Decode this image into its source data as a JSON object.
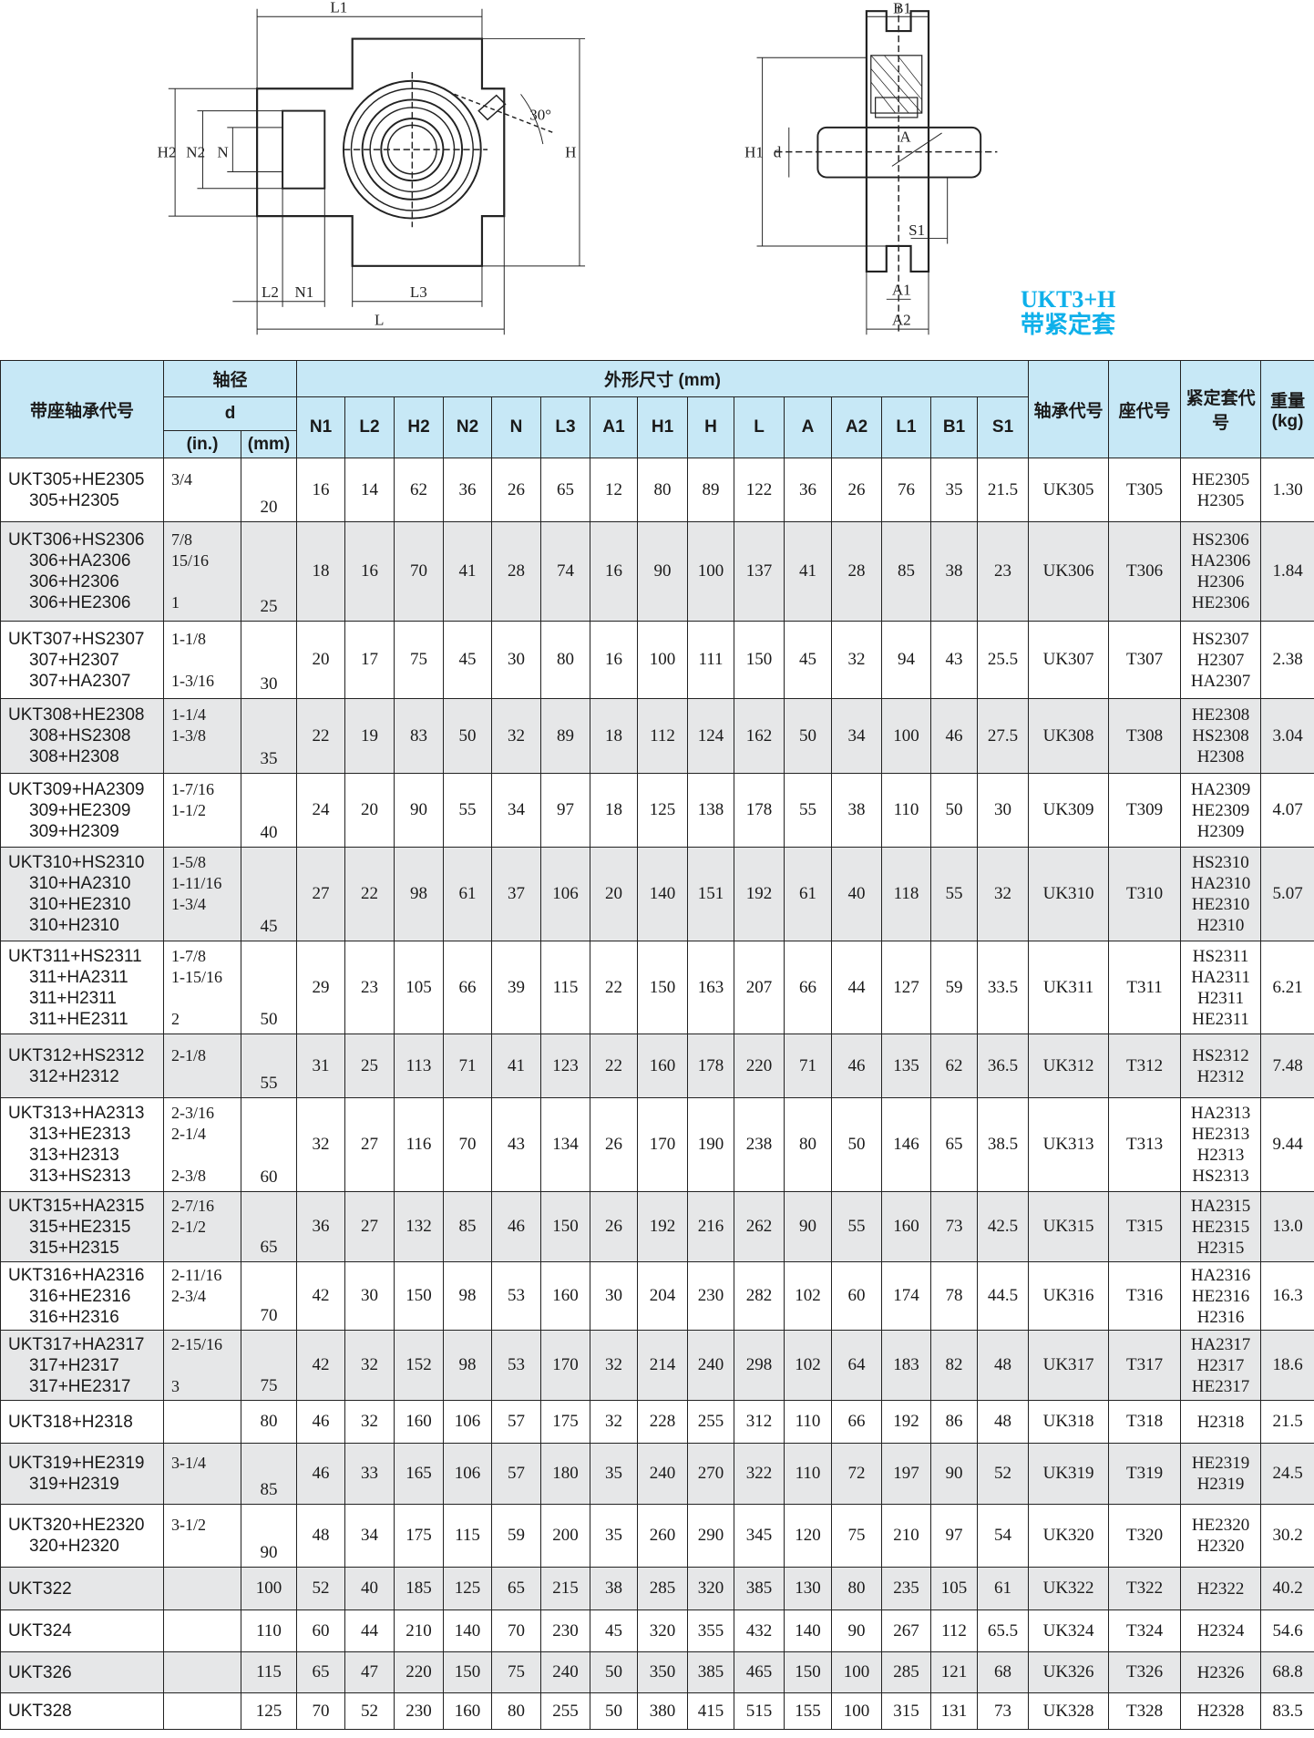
{
  "drawing": {
    "labels": {
      "L1": "L1",
      "H2": "H2",
      "N2": "N2",
      "N": "N",
      "angle": "30°",
      "H": "H",
      "L2": "L2",
      "N1": "N1",
      "L3": "L3",
      "L": "L",
      "B1": "B1",
      "H1": "H1",
      "d": "d",
      "A": "A",
      "S1": "S1",
      "A1": "A1",
      "A2": "A2"
    },
    "colors": {
      "line": "#222222",
      "title": "#0eb0ea",
      "header_bg": "#c7e8f6",
      "alt_row": "#e6e7e8"
    }
  },
  "model": {
    "code": "UKT3+H",
    "name": "带紧定套"
  },
  "table": {
    "headers": {
      "unit_code": "带座轴承代号",
      "shaft": "轴径",
      "d": "d",
      "inch": "(in.)",
      "mm": "(mm)",
      "dims": "外形尺寸 (mm)",
      "bearing": "轴承代号",
      "housing": "座代号",
      "sleeve": "紧定套代号",
      "weight": "重量(kg)",
      "dim_cols": [
        "N1",
        "L2",
        "H2",
        "N2",
        "N",
        "L3",
        "A1",
        "H1",
        "H",
        "L",
        "A",
        "A2",
        "L1",
        "B1",
        "S1"
      ]
    },
    "rows": [
      {
        "codes": [
          "UKT305+HE2305",
          "305+H2305"
        ],
        "inch": [
          "3/4",
          ""
        ],
        "mm": "20",
        "dims": [
          "16",
          "14",
          "62",
          "36",
          "26",
          "65",
          "12",
          "80",
          "89",
          "122",
          "36",
          "26",
          "76",
          "35",
          "21.5"
        ],
        "bearing": "UK305",
        "housing": "T305",
        "sleeve": [
          "HE2305",
          "H2305"
        ],
        "weight": "1.30"
      },
      {
        "codes": [
          "UKT306+HS2306",
          "306+HA2306",
          "306+H2306",
          "306+HE2306"
        ],
        "inch": [
          "7/8",
          "15/16",
          "",
          "1"
        ],
        "mm": "25",
        "dims": [
          "18",
          "16",
          "70",
          "41",
          "28",
          "74",
          "16",
          "90",
          "100",
          "137",
          "41",
          "28",
          "85",
          "38",
          "23"
        ],
        "bearing": "UK306",
        "housing": "T306",
        "sleeve": [
          "HS2306",
          "HA2306",
          "H2306",
          "HE2306"
        ],
        "weight": "1.84"
      },
      {
        "codes": [
          "UKT307+HS2307",
          "307+H2307",
          "307+HA2307"
        ],
        "inch": [
          "1-1/8",
          "",
          "1-3/16"
        ],
        "mm": "30",
        "dims": [
          "20",
          "17",
          "75",
          "45",
          "30",
          "80",
          "16",
          "100",
          "111",
          "150",
          "45",
          "32",
          "94",
          "43",
          "25.5"
        ],
        "bearing": "UK307",
        "housing": "T307",
        "sleeve": [
          "HS2307",
          "H2307",
          "HA2307"
        ],
        "weight": "2.38"
      },
      {
        "codes": [
          "UKT308+HE2308",
          "308+HS2308",
          "308+H2308"
        ],
        "inch": [
          "1-1/4",
          "1-3/8",
          ""
        ],
        "mm": "35",
        "dims": [
          "22",
          "19",
          "83",
          "50",
          "32",
          "89",
          "18",
          "112",
          "124",
          "162",
          "50",
          "34",
          "100",
          "46",
          "27.5"
        ],
        "bearing": "UK308",
        "housing": "T308",
        "sleeve": [
          "HE2308",
          "HS2308",
          "H2308"
        ],
        "weight": "3.04"
      },
      {
        "codes": [
          "UKT309+HA2309",
          "309+HE2309",
          "309+H2309"
        ],
        "inch": [
          "1-7/16",
          "1-1/2",
          ""
        ],
        "mm": "40",
        "dims": [
          "24",
          "20",
          "90",
          "55",
          "34",
          "97",
          "18",
          "125",
          "138",
          "178",
          "55",
          "38",
          "110",
          "50",
          "30"
        ],
        "bearing": "UK309",
        "housing": "T309",
        "sleeve": [
          "HA2309",
          "HE2309",
          "H2309"
        ],
        "weight": "4.07"
      },
      {
        "codes": [
          "UKT310+HS2310",
          "310+HA2310",
          "310+HE2310",
          "310+H2310"
        ],
        "inch": [
          "1-5/8",
          "1-11/16",
          "1-3/4",
          ""
        ],
        "mm": "45",
        "dims": [
          "27",
          "22",
          "98",
          "61",
          "37",
          "106",
          "20",
          "140",
          "151",
          "192",
          "61",
          "40",
          "118",
          "55",
          "32"
        ],
        "bearing": "UK310",
        "housing": "T310",
        "sleeve": [
          "HS2310",
          "HA2310",
          "HE2310",
          "H2310"
        ],
        "weight": "5.07"
      },
      {
        "codes": [
          "UKT311+HS2311",
          "311+HA2311",
          "311+H2311",
          "311+HE2311"
        ],
        "inch": [
          "1-7/8",
          "1-15/16",
          "",
          "2"
        ],
        "mm": "50",
        "dims": [
          "29",
          "23",
          "105",
          "66",
          "39",
          "115",
          "22",
          "150",
          "163",
          "207",
          "66",
          "44",
          "127",
          "59",
          "33.5"
        ],
        "bearing": "UK311",
        "housing": "T311",
        "sleeve": [
          "HS2311",
          "HA2311",
          "H2311",
          "HE2311"
        ],
        "weight": "6.21"
      },
      {
        "codes": [
          "UKT312+HS2312",
          "312+H2312"
        ],
        "inch": [
          "2-1/8",
          ""
        ],
        "mm": "55",
        "dims": [
          "31",
          "25",
          "113",
          "71",
          "41",
          "123",
          "22",
          "160",
          "178",
          "220",
          "71",
          "46",
          "135",
          "62",
          "36.5"
        ],
        "bearing": "UK312",
        "housing": "T312",
        "sleeve": [
          "HS2312",
          "H2312"
        ],
        "weight": "7.48"
      },
      {
        "codes": [
          "UKT313+HA2313",
          "313+HE2313",
          "313+H2313",
          "313+HS2313"
        ],
        "inch": [
          "2-3/16",
          "2-1/4",
          "",
          "2-3/8"
        ],
        "mm": "60",
        "dims": [
          "32",
          "27",
          "116",
          "70",
          "43",
          "134",
          "26",
          "170",
          "190",
          "238",
          "80",
          "50",
          "146",
          "65",
          "38.5"
        ],
        "bearing": "UK313",
        "housing": "T313",
        "sleeve": [
          "HA2313",
          "HE2313",
          "H2313",
          "HS2313"
        ],
        "weight": "9.44"
      },
      {
        "codes": [
          "UKT315+HA2315",
          "315+HE2315",
          "315+H2315"
        ],
        "inch": [
          "2-7/16",
          "2-1/2",
          ""
        ],
        "mm": "65",
        "dims": [
          "36",
          "27",
          "132",
          "85",
          "46",
          "150",
          "26",
          "192",
          "216",
          "262",
          "90",
          "55",
          "160",
          "73",
          "42.5"
        ],
        "bearing": "UK315",
        "housing": "T315",
        "sleeve": [
          "HA2315",
          "HE2315",
          "H2315"
        ],
        "weight": "13.0"
      },
      {
        "codes": [
          "UKT316+HA2316",
          "316+HE2316",
          "316+H2316"
        ],
        "inch": [
          "2-11/16",
          "2-3/4",
          ""
        ],
        "mm": "70",
        "dims": [
          "42",
          "30",
          "150",
          "98",
          "53",
          "160",
          "30",
          "204",
          "230",
          "282",
          "102",
          "60",
          "174",
          "78",
          "44.5"
        ],
        "bearing": "UK316",
        "housing": "T316",
        "sleeve": [
          "HA2316",
          "HE2316",
          "H2316"
        ],
        "weight": "16.3"
      },
      {
        "codes": [
          "UKT317+HA2317",
          "317+H2317",
          "317+HE2317"
        ],
        "inch": [
          "2-15/16",
          "",
          "3"
        ],
        "mm": "75",
        "dims": [
          "42",
          "32",
          "152",
          "98",
          "53",
          "170",
          "32",
          "214",
          "240",
          "298",
          "102",
          "64",
          "183",
          "82",
          "48"
        ],
        "bearing": "UK317",
        "housing": "T317",
        "sleeve": [
          "HA2317",
          "H2317",
          "HE2317"
        ],
        "weight": "18.6"
      },
      {
        "codes": [
          "UKT318+H2318"
        ],
        "inch": [
          ""
        ],
        "mm": "80",
        "dims": [
          "46",
          "32",
          "160",
          "106",
          "57",
          "175",
          "32",
          "228",
          "255",
          "312",
          "110",
          "66",
          "192",
          "86",
          "48"
        ],
        "bearing": "UK318",
        "housing": "T318",
        "sleeve": [
          "H2318"
        ],
        "weight": "21.5"
      },
      {
        "codes": [
          "UKT319+HE2319",
          "319+H2319"
        ],
        "inch": [
          "3-1/4",
          ""
        ],
        "mm": "85",
        "dims": [
          "46",
          "33",
          "165",
          "106",
          "57",
          "180",
          "35",
          "240",
          "270",
          "322",
          "110",
          "72",
          "197",
          "90",
          "52"
        ],
        "bearing": "UK319",
        "housing": "T319",
        "sleeve": [
          "HE2319",
          "H2319"
        ],
        "weight": "24.5"
      },
      {
        "codes": [
          "UKT320+HE2320",
          "320+H2320"
        ],
        "inch": [
          "3-1/2",
          ""
        ],
        "mm": "90",
        "dims": [
          "48",
          "34",
          "175",
          "115",
          "59",
          "200",
          "35",
          "260",
          "290",
          "345",
          "120",
          "75",
          "210",
          "97",
          "54"
        ],
        "bearing": "UK320",
        "housing": "T320",
        "sleeve": [
          "HE2320",
          "H2320"
        ],
        "weight": "30.2"
      },
      {
        "codes": [
          "UKT322"
        ],
        "inch": [
          ""
        ],
        "mm": "100",
        "dims": [
          "52",
          "40",
          "185",
          "125",
          "65",
          "215",
          "38",
          "285",
          "320",
          "385",
          "130",
          "80",
          "235",
          "105",
          "61"
        ],
        "bearing": "UK322",
        "housing": "T322",
        "sleeve": [
          "H2322"
        ],
        "weight": "40.2"
      },
      {
        "codes": [
          "UKT324"
        ],
        "inch": [
          ""
        ],
        "mm": "110",
        "dims": [
          "60",
          "44",
          "210",
          "140",
          "70",
          "230",
          "45",
          "320",
          "355",
          "432",
          "140",
          "90",
          "267",
          "112",
          "65.5"
        ],
        "bearing": "UK324",
        "housing": "T324",
        "sleeve": [
          "H2324"
        ],
        "weight": "54.6"
      },
      {
        "codes": [
          "UKT326"
        ],
        "inch": [
          ""
        ],
        "mm": "115",
        "dims": [
          "65",
          "47",
          "220",
          "150",
          "75",
          "240",
          "50",
          "350",
          "385",
          "465",
          "150",
          "100",
          "285",
          "121",
          "68"
        ],
        "bearing": "UK326",
        "housing": "T326",
        "sleeve": [
          "H2326"
        ],
        "weight": "68.8"
      },
      {
        "codes": [
          "UKT328"
        ],
        "inch": [
          ""
        ],
        "mm": "125",
        "dims": [
          "70",
          "52",
          "230",
          "160",
          "80",
          "255",
          "50",
          "380",
          "415",
          "515",
          "155",
          "100",
          "315",
          "131",
          "73"
        ],
        "bearing": "UK328",
        "housing": "T328",
        "sleeve": [
          "H2328"
        ],
        "weight": "83.5"
      }
    ]
  }
}
